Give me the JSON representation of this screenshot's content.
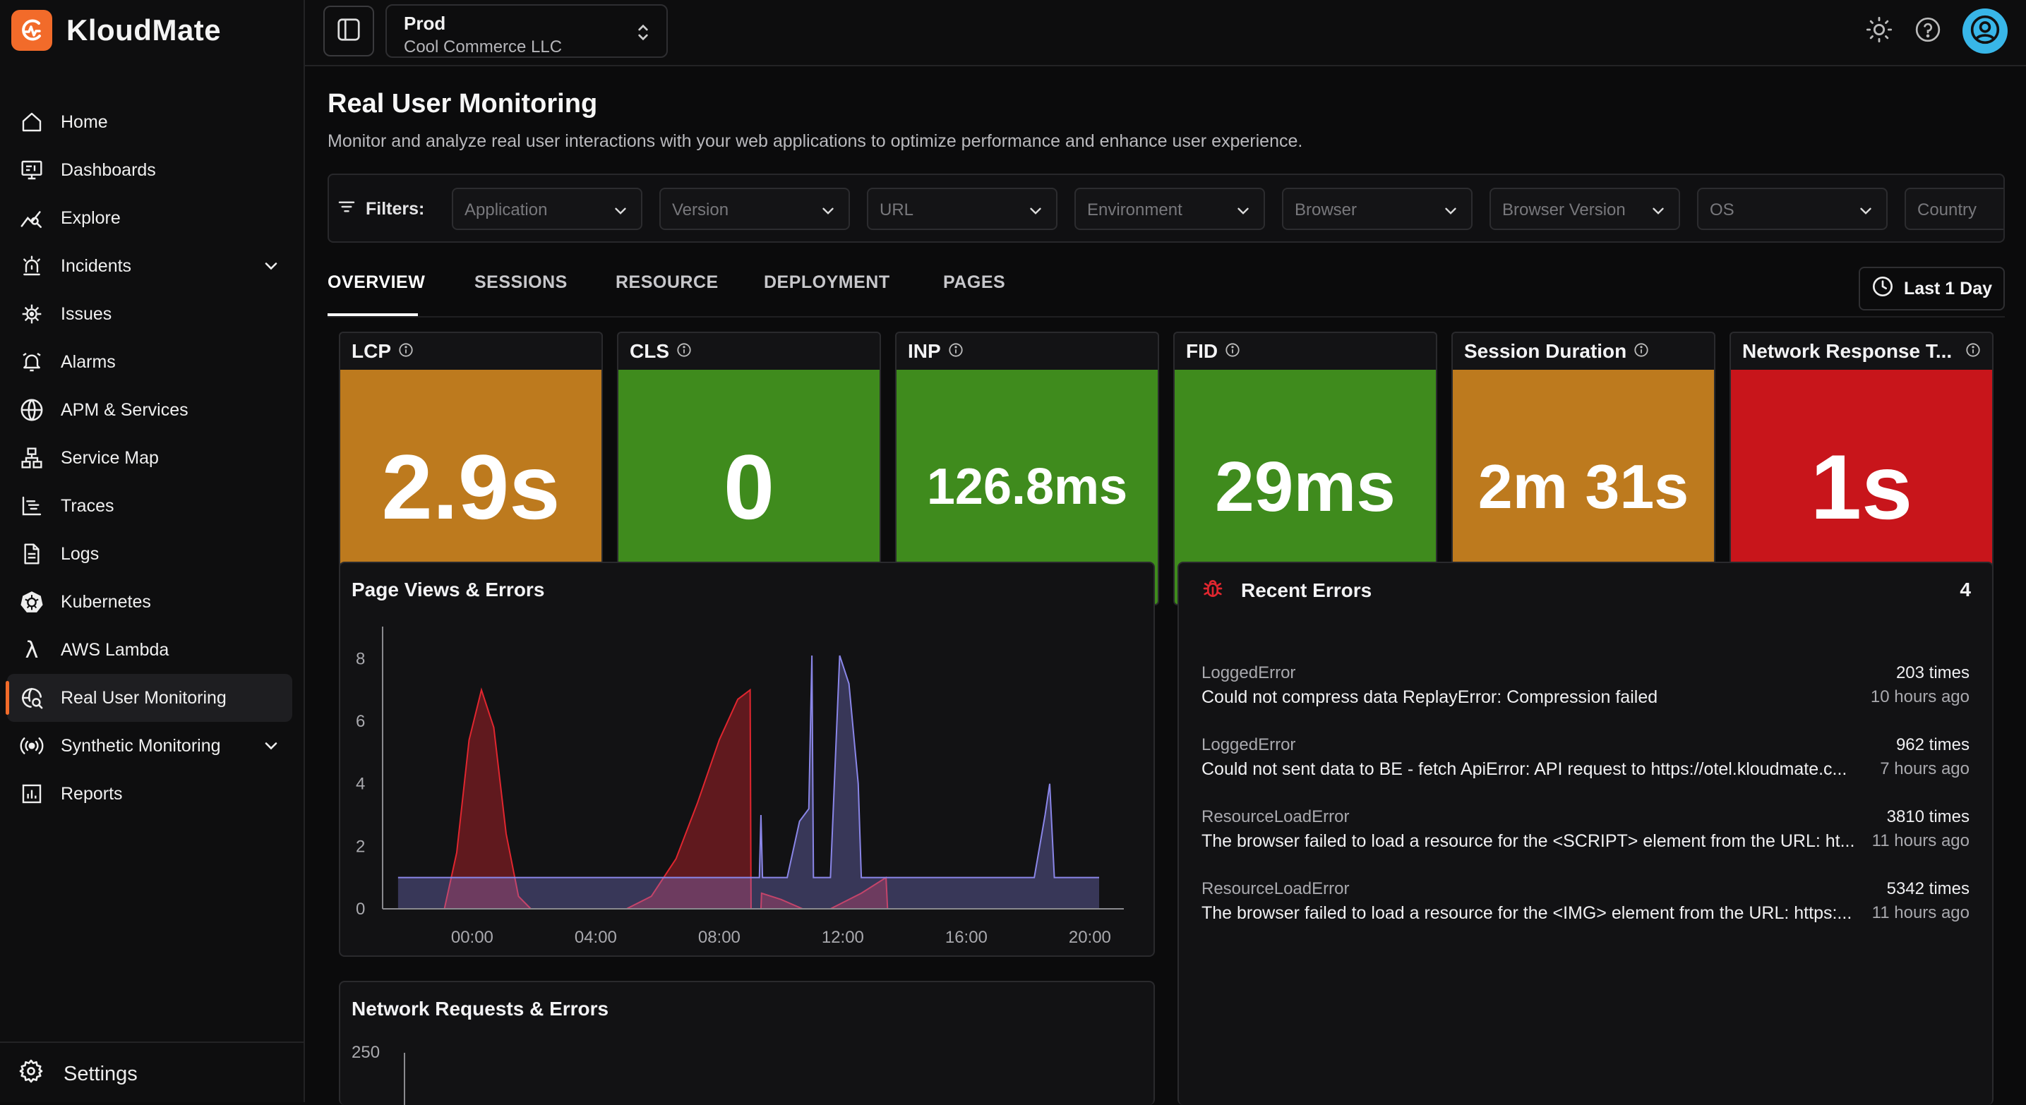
{
  "brand": {
    "name": "KloudMate",
    "accent": "#f26b2a"
  },
  "sidebar": {
    "items": [
      {
        "label": "Home",
        "icon": "home-icon"
      },
      {
        "label": "Dashboards",
        "icon": "dashboards-icon"
      },
      {
        "label": "Explore",
        "icon": "explore-icon"
      },
      {
        "label": "Incidents",
        "icon": "incidents-icon",
        "expandable": true
      },
      {
        "label": "Issues",
        "icon": "issues-icon"
      },
      {
        "label": "Alarms",
        "icon": "alarms-icon"
      },
      {
        "label": "APM & Services",
        "icon": "apm-icon"
      },
      {
        "label": "Service Map",
        "icon": "service-map-icon"
      },
      {
        "label": "Traces",
        "icon": "traces-icon"
      },
      {
        "label": "Logs",
        "icon": "logs-icon"
      },
      {
        "label": "Kubernetes",
        "icon": "kubernetes-icon"
      },
      {
        "label": "AWS Lambda",
        "icon": "lambda-icon"
      },
      {
        "label": "Real User Monitoring",
        "icon": "rum-icon",
        "active": true
      },
      {
        "label": "Synthetic Monitoring",
        "icon": "synthetic-icon",
        "expandable": true
      },
      {
        "label": "Reports",
        "icon": "reports-icon"
      }
    ],
    "settings_label": "Settings"
  },
  "topbar": {
    "env_name": "Prod",
    "env_org": "Cool Commerce LLC"
  },
  "page": {
    "title": "Real User Monitoring",
    "description": "Monitor and analyze real user interactions with your web applications to optimize performance and enhance user experience."
  },
  "filters": {
    "label": "Filters:",
    "placeholders": [
      "Application",
      "Version",
      "URL",
      "Environment",
      "Browser",
      "Browser Version",
      "OS",
      "Country"
    ]
  },
  "tabs": {
    "items": [
      "OVERVIEW",
      "SESSIONS",
      "RESOURCE",
      "DEPLOYMENT",
      "PAGES"
    ],
    "active": "OVERVIEW",
    "range_label": "Last 1 Day"
  },
  "metrics": [
    {
      "label": "LCP",
      "value": "2.9s",
      "color": "#bd7a1e"
    },
    {
      "label": "CLS",
      "value": "0",
      "color": "#3f8b1d"
    },
    {
      "label": "INP",
      "value": "126.8ms",
      "color": "#3f8b1d"
    },
    {
      "label": "FID",
      "value": "29ms",
      "color": "#3f8b1d"
    },
    {
      "label": "Session Duration",
      "value": "2m 31s",
      "color": "#bd7a1e"
    },
    {
      "label": "Network Response T...",
      "value": "1s",
      "color": "#c8151b"
    }
  ],
  "page_views_panel": {
    "title": "Page Views & Errors"
  },
  "network_panel": {
    "title": "Network Requests & Errors",
    "first_tick": "250"
  },
  "recent_errors": {
    "title": "Recent Errors",
    "count": "4",
    "items": [
      {
        "type": "LoggedError",
        "message": "Could not compress data ReplayError: Compression failed",
        "count": "203 times",
        "time": "10 hours ago"
      },
      {
        "type": "LoggedError",
        "message": "Could not sent data to BE - fetch ApiError: API request to https://otel.kloudmate.c...",
        "count": "962 times",
        "time": "7 hours ago"
      },
      {
        "type": "ResourceLoadError",
        "message": "The browser failed to load a resource for the <SCRIPT> element from the URL: ht...",
        "count": "3810 times",
        "time": "11 hours ago"
      },
      {
        "type": "ResourceLoadError",
        "message": "The browser failed to load a resource for the <IMG> element from the URL: https:...",
        "count": "5342 times",
        "time": "11 hours ago"
      }
    ]
  },
  "chart_data": [
    {
      "type": "area",
      "title": "Page Views & Errors",
      "xlabel": "",
      "ylabel": "",
      "x_ticks": [
        "00:00",
        "04:00",
        "08:00",
        "12:00",
        "16:00",
        "20:00"
      ],
      "y_ticks": [
        0,
        2,
        4,
        6,
        8
      ],
      "ylim": [
        0,
        8.8
      ],
      "xlim_hours": [
        -2.9,
        21.1
      ],
      "grid": false,
      "series": [
        {
          "color": "#e0262f",
          "points": [
            [
              -1.4,
              0
            ],
            [
              -0.9,
              0
            ],
            [
              -0.5,
              1.8
            ],
            [
              -0.1,
              5.4
            ],
            [
              0.3,
              7.0
            ],
            [
              0.7,
              5.8
            ],
            [
              1.1,
              2.4
            ],
            [
              1.5,
              0.4
            ],
            [
              1.9,
              0
            ],
            [
              5.0,
              0
            ],
            [
              5.8,
              0.4
            ],
            [
              6.6,
              1.6
            ],
            [
              7.3,
              3.4
            ],
            [
              8.0,
              5.4
            ],
            [
              8.6,
              6.7
            ],
            [
              9.0,
              7.0
            ],
            [
              9.03,
              0
            ],
            [
              9.35,
              0
            ],
            [
              9.37,
              0.5
            ],
            [
              10.0,
              0.3
            ],
            [
              10.7,
              0
            ],
            [
              11.6,
              0
            ],
            [
              12.6,
              0.5
            ],
            [
              13.4,
              1.0
            ],
            [
              13.45,
              0
            ],
            [
              20.3,
              0
            ]
          ]
        },
        {
          "color": "#8a86e8",
          "points": [
            [
              -2.4,
              1.0
            ],
            [
              9.3,
              1.0
            ],
            [
              9.35,
              3.0
            ],
            [
              9.4,
              1.0
            ],
            [
              10.2,
              1.0
            ],
            [
              10.6,
              2.8
            ],
            [
              10.9,
              3.2
            ],
            [
              11.0,
              8.1
            ],
            [
              11.05,
              1.0
            ],
            [
              11.6,
              1.0
            ],
            [
              11.9,
              8.1
            ],
            [
              12.2,
              7.2
            ],
            [
              12.5,
              4.0
            ],
            [
              12.6,
              1.0
            ],
            [
              18.2,
              1.0
            ],
            [
              18.55,
              3.0
            ],
            [
              18.7,
              4.0
            ],
            [
              18.85,
              1.0
            ],
            [
              20.3,
              1.0
            ]
          ]
        }
      ]
    },
    {
      "type": "line",
      "title": "Network Requests & Errors",
      "y_ticks": [
        250
      ]
    }
  ]
}
